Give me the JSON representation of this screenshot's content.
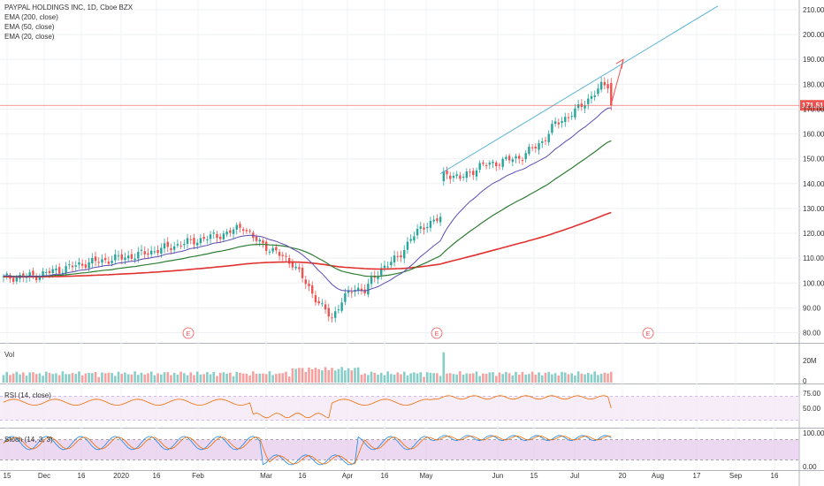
{
  "chart_data": {
    "type": "candlestick",
    "title": "PAYPAL HOLDINGS INC, 1D, Cboe BZX",
    "legend": [
      "EMA (200, close)",
      "EMA (50, close)",
      "EMA (20, close)"
    ],
    "price_axis": {
      "ticks": [
        "210.00",
        "200.00",
        "190.00",
        "180.00",
        "170.00",
        "160.00",
        "150.00",
        "140.00",
        "130.00",
        "120.00",
        "110.00",
        "100.00",
        "90.00",
        "80.00"
      ],
      "range": [
        76,
        214
      ]
    },
    "last_price": {
      "label": "171.51",
      "value": 171.51,
      "color": "#ef5350"
    },
    "time_axis": {
      "ticks": [
        "15",
        "Dec",
        "16",
        "2020",
        "16",
        "Feb",
        "Mar",
        "16",
        "Apr",
        "16",
        "May",
        "Jun",
        "15",
        "Jul",
        "20",
        "Aug",
        "17",
        "Sep",
        "16"
      ]
    },
    "earnings_marker": "E",
    "colors": {
      "up": "#26a69a",
      "down": "#ef5350",
      "ema200": "#e0312f",
      "ema50": "#2e7d32",
      "ema20": "#5c4db1",
      "trend": "#5ab3d6"
    },
    "volume": {
      "label": "Vol",
      "ticks": [
        "20M",
        "0"
      ]
    },
    "rsi": {
      "label": "RSI (14, close)",
      "ticks": [
        "75.00",
        "50.00"
      ]
    },
    "stoch": {
      "label": "Stoch (14, 3, 3)",
      "ticks": [
        "100.00",
        "0.00"
      ]
    }
  }
}
